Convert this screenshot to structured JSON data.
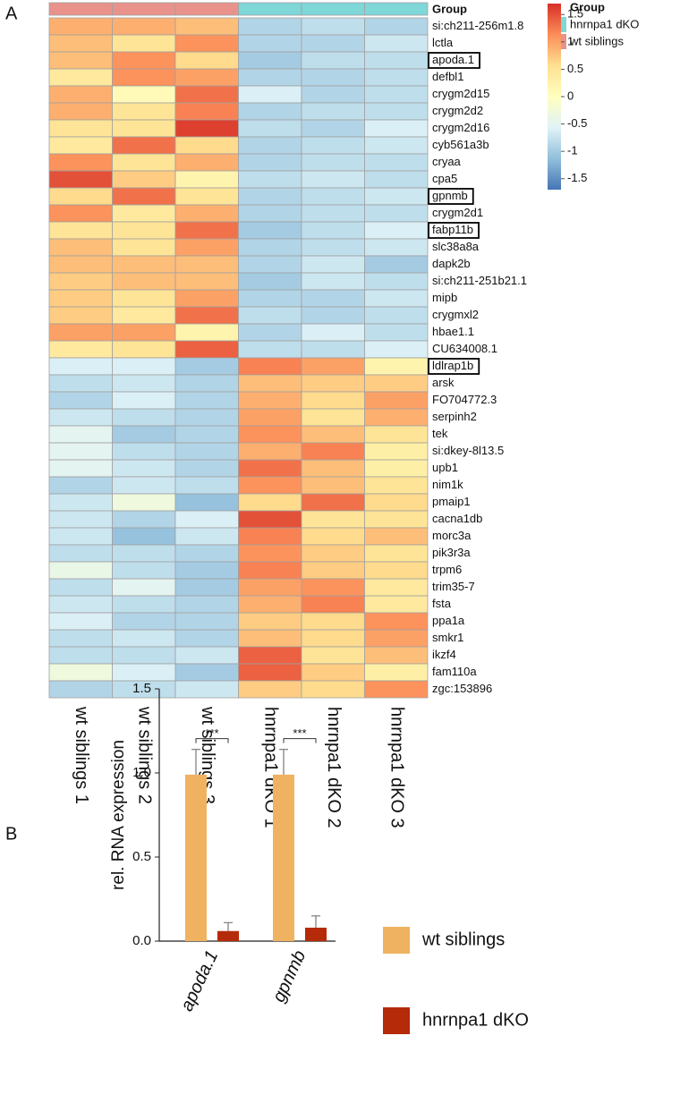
{
  "chart_data": [
    {
      "type": "heatmap",
      "panel_label": "A",
      "group_track_label": "Group",
      "legend_title": "Group",
      "groups": [
        {
          "name": "hnrnpa1 dKO",
          "color": "#7fd7d8"
        },
        {
          "name": "wt siblings",
          "color": "#e8928b"
        }
      ],
      "column_group": [
        "wt siblings",
        "wt siblings",
        "wt siblings",
        "hnrnpa1 dKO",
        "hnrnpa1 dKO",
        "hnrnpa1 dKO"
      ],
      "columns": [
        "wt siblings 1",
        "wt siblings 2",
        "wt siblings 3",
        "hnrnpa1 dKO 1",
        "hnrnpa1 dKO 2",
        "hnrnpa1 dKO 3"
      ],
      "rows": [
        "si:ch211-256m1.8",
        "lctla",
        "apoda.1",
        "defbl1",
        "crygm2d15",
        "crygm2d2",
        "crygm2d16",
        "cyb561a3b",
        "cryaa",
        "cpa5",
        "gpnmb",
        "crygm2d1",
        "fabp11b",
        "slc38a8a",
        "dapk2b",
        "si:ch211-251b21.1",
        "mipb",
        "crygmxl2",
        "hbae1.1",
        "CU634008.1",
        "ldlrap1b",
        "arsk",
        "FO704772.3",
        "serpinh2",
        "tek",
        "si:dkey-8l13.5",
        "upb1",
        "nim1k",
        "pmaip1",
        "cacna1db",
        "morc3a",
        "pik3r3a",
        "trpm6",
        "trim35-7",
        "fsta",
        "ppa1a",
        "smkr1",
        "ikzf4",
        "fam110a",
        "zgc:153896"
      ],
      "highlight_rows": [
        "apoda.1",
        "gpnmb",
        "fabp11b",
        "ldlrap1b"
      ],
      "values": [
        [
          0.9,
          0.9,
          0.8,
          -0.9,
          -0.8,
          -0.9
        ],
        [
          0.8,
          0.5,
          1.1,
          -0.9,
          -0.9,
          -0.7
        ],
        [
          0.8,
          1.1,
          0.6,
          -1.0,
          -0.8,
          -0.8
        ],
        [
          0.4,
          1.1,
          1.0,
          -0.9,
          -0.9,
          -0.8
        ],
        [
          0.9,
          0.1,
          1.3,
          -0.6,
          -0.9,
          -0.8
        ],
        [
          0.9,
          0.5,
          1.2,
          -0.9,
          -0.8,
          -0.8
        ],
        [
          0.5,
          0.5,
          1.6,
          -0.8,
          -0.9,
          -0.6
        ],
        [
          0.4,
          1.3,
          0.6,
          -0.9,
          -0.8,
          -0.7
        ],
        [
          1.1,
          0.5,
          0.9,
          -0.9,
          -0.8,
          -0.8
        ],
        [
          1.5,
          0.7,
          0.2,
          -0.8,
          -0.7,
          -0.8
        ],
        [
          0.6,
          1.3,
          0.5,
          -0.9,
          -0.8,
          -0.7
        ],
        [
          1.1,
          0.4,
          0.9,
          -0.9,
          -0.8,
          -0.8
        ],
        [
          0.5,
          0.5,
          1.3,
          -1.0,
          -0.8,
          -0.6
        ],
        [
          0.8,
          0.5,
          1.0,
          -0.9,
          -0.8,
          -0.7
        ],
        [
          0.8,
          0.8,
          0.8,
          -0.9,
          -0.7,
          -1.0
        ],
        [
          0.7,
          0.8,
          0.8,
          -1.0,
          -0.7,
          -0.8
        ],
        [
          0.7,
          0.5,
          1.0,
          -0.9,
          -0.9,
          -0.7
        ],
        [
          0.7,
          0.4,
          1.3,
          -0.8,
          -0.9,
          -0.8
        ],
        [
          1.0,
          1.0,
          0.2,
          -0.9,
          -0.6,
          -0.8
        ],
        [
          0.4,
          0.5,
          1.4,
          -0.8,
          -0.8,
          -0.6
        ],
        [
          -0.6,
          -0.6,
          -1.0,
          1.2,
          1.0,
          0.2
        ],
        [
          -0.8,
          -0.7,
          -0.9,
          0.8,
          0.7,
          0.7
        ],
        [
          -0.9,
          -0.6,
          -0.9,
          0.9,
          0.6,
          1.0
        ],
        [
          -0.7,
          -0.8,
          -0.9,
          1.0,
          0.5,
          0.9
        ],
        [
          -0.5,
          -1.0,
          -0.9,
          1.1,
          0.8,
          0.5
        ],
        [
          -0.5,
          -0.8,
          -0.9,
          0.9,
          1.2,
          0.3
        ],
        [
          -0.5,
          -0.7,
          -0.9,
          1.3,
          0.8,
          0.3
        ],
        [
          -0.9,
          -0.7,
          -0.8,
          1.1,
          0.8,
          0.5
        ],
        [
          -0.7,
          -0.3,
          -1.1,
          0.6,
          1.3,
          0.6
        ],
        [
          -0.7,
          -0.9,
          -0.6,
          1.5,
          0.5,
          0.5
        ],
        [
          -0.7,
          -1.1,
          -0.7,
          1.2,
          0.6,
          0.8
        ],
        [
          -0.8,
          -0.8,
          -0.9,
          1.1,
          0.7,
          0.5
        ],
        [
          -0.4,
          -0.8,
          -1.0,
          1.2,
          0.7,
          0.6
        ],
        [
          -0.8,
          -0.5,
          -1.0,
          1.0,
          1.1,
          0.4
        ],
        [
          -0.7,
          -0.8,
          -0.9,
          0.9,
          1.2,
          0.4
        ],
        [
          -0.6,
          -0.9,
          -0.9,
          0.7,
          0.6,
          1.1
        ],
        [
          -0.8,
          -0.7,
          -0.9,
          0.8,
          0.6,
          1.0
        ],
        [
          -0.8,
          -0.8,
          -0.7,
          1.4,
          0.5,
          0.8
        ],
        [
          -0.3,
          -0.6,
          -1.0,
          1.4,
          0.7,
          0.3
        ],
        [
          -0.9,
          -0.8,
          -0.7,
          0.7,
          0.6,
          1.1
        ]
      ],
      "zlim": [
        -1.7,
        1.7
      ],
      "zticks": [
        1.5,
        1,
        0.5,
        0,
        -0.5,
        -1,
        -1.5
      ],
      "colors": [
        "#4575b4",
        "#91bfdb",
        "#e0f3f8",
        "#ffffbf",
        "#fee090",
        "#fc8d59",
        "#d73027"
      ]
    },
    {
      "type": "bar",
      "panel_label": "B",
      "ylabel": "rel. RNA expression",
      "categories": [
        "apoda.1",
        "gpnmb"
      ],
      "series": [
        {
          "name": "wt siblings",
          "color": "#efb261",
          "values": [
            0.99,
            0.99
          ],
          "errors": [
            0.15,
            0.15
          ]
        },
        {
          "name": "hnrnpa1 dKO",
          "color": "#b52a08",
          "values": [
            0.06,
            0.08
          ],
          "errors": [
            0.05,
            0.07
          ]
        }
      ],
      "annotations": [
        "***",
        "***"
      ],
      "ylim": [
        0,
        1.5
      ],
      "yticks": [
        {
          "value": 0,
          "label": "0.0"
        },
        0.5,
        {
          "value": 1,
          "label": "1.0"
        },
        1.5
      ]
    }
  ]
}
